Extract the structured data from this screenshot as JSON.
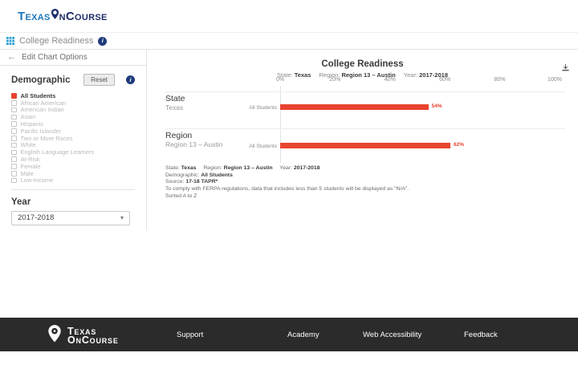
{
  "header": {
    "logo": {
      "part1": "Texas",
      "part2": "n",
      "part3": "Course"
    }
  },
  "toolbar": {
    "title": "College Readiness"
  },
  "sidebar": {
    "back_label": "Edit Chart Options",
    "demographic": {
      "heading": "Demographic",
      "reset_label": "Reset",
      "options": [
        {
          "label": "All Students",
          "checked": true
        },
        {
          "label": "African American",
          "checked": false
        },
        {
          "label": "American Indian",
          "checked": false
        },
        {
          "label": "Asian",
          "checked": false
        },
        {
          "label": "Hispanic",
          "checked": false
        },
        {
          "label": "Pacific Islander",
          "checked": false
        },
        {
          "label": "Two or More Races",
          "checked": false
        },
        {
          "label": "White",
          "checked": false
        },
        {
          "label": "English Language Learners",
          "checked": false
        },
        {
          "label": "At-Risk",
          "checked": false
        },
        {
          "label": "Female",
          "checked": false
        },
        {
          "label": "Male",
          "checked": false
        },
        {
          "label": "Low-Income",
          "checked": false
        }
      ]
    },
    "year": {
      "heading": "Year",
      "selected": "2017-2018"
    }
  },
  "chart_data": {
    "type": "bar",
    "title": "College Readiness",
    "subtitle": [
      {
        "label": "State:",
        "value": "Texas"
      },
      {
        "label": "Region:",
        "value": "Region 13 – Austin"
      },
      {
        "label": "Year:",
        "value": "2017-2018"
      }
    ],
    "x_ticks": [
      "0%",
      "20%",
      "40%",
      "60%",
      "80%",
      "100%"
    ],
    "xlim": [
      0,
      100
    ],
    "grid": false,
    "legend_position": "none",
    "bar_color": "#e8432e",
    "sections": [
      {
        "heading": "State",
        "row_label": "Texas",
        "series": "All Students",
        "value": 54,
        "value_label": "54%"
      },
      {
        "heading": "Region",
        "row_label": "Region 13 – Austin",
        "series": "All Students",
        "value": 62,
        "value_label": "62%"
      }
    ]
  },
  "footnotes": {
    "line1": [
      {
        "label": "State:",
        "value": "Texas"
      },
      {
        "label": "Region:",
        "value": "Region 13 – Austin"
      },
      {
        "label": "Year:",
        "value": "2017-2018"
      }
    ],
    "line2": {
      "label": "Demographic:",
      "value": "All Students"
    },
    "line3": {
      "label": "Source:",
      "value": "17-18 TAPR*"
    },
    "line4": "To comply with FERPA regulations, data that includes less than 5 students will be displayed as \"N/A\".",
    "line5": "Sorted A to Z"
  },
  "footer": {
    "logo_line1": "Texas",
    "logo_line2": "OnCourse",
    "links": [
      "Support",
      "Academy",
      "Web Accessibility",
      "Feedback"
    ]
  }
}
